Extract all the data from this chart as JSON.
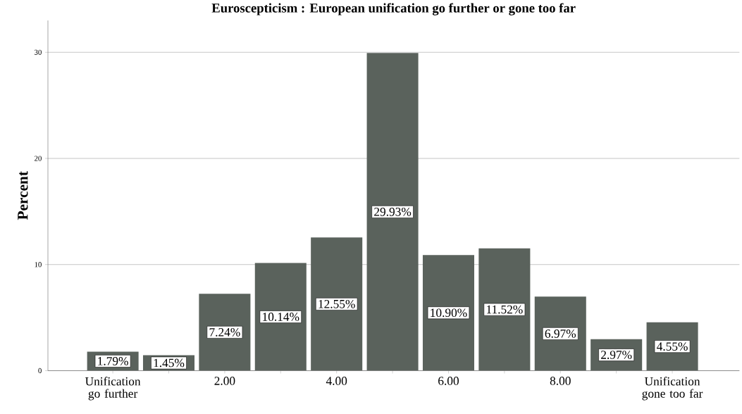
{
  "chart_data": {
    "type": "bar",
    "title": "Euroscepticism : European unification go further or gone too far",
    "ylabel": "Percent",
    "categories": [
      "Unification go further",
      null,
      "2.00",
      null,
      "4.00",
      null,
      "6.00",
      null,
      "8.00",
      null,
      "Unification gone too far"
    ],
    "values": [
      1.79,
      1.45,
      7.24,
      10.14,
      12.55,
      29.93,
      10.9,
      11.52,
      6.97,
      2.97,
      4.55
    ],
    "value_labels": [
      "1.79%",
      "1.45%",
      "7.24%",
      "10.14%",
      "12.55%",
      "29.93%",
      "10.90%",
      "11.52%",
      "6.97%",
      "2.97%",
      "4.55%"
    ],
    "color": "#5a625c",
    "ylim": [
      0,
      33
    ],
    "yticks": [
      0,
      10,
      20,
      30
    ],
    "grid": "y"
  }
}
